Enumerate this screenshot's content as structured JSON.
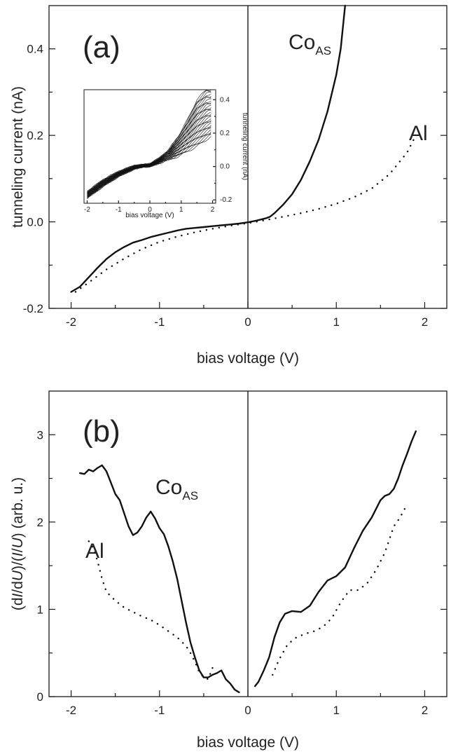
{
  "chart_data": [
    {
      "type": "line",
      "panel_label": "(a)",
      "xlabel": "bias voltage (V)",
      "ylabel": "tunneling current (nA)",
      "xlim": [
        -2.25,
        2.25
      ],
      "ylim": [
        -0.2,
        0.5
      ],
      "xticks": [
        -2,
        -1,
        0,
        1,
        2
      ],
      "yticks": [
        -0.2,
        0.0,
        0.2,
        0.4
      ],
      "ytick_labels": [
        "-0.2",
        "0.0",
        "0.2",
        "0.4"
      ],
      "series": [
        {
          "name": "CoAS",
          "label_main": "Co",
          "label_sub": "AS",
          "style": "solid",
          "x": [
            -2.0,
            -1.9,
            -1.8,
            -1.7,
            -1.6,
            -1.5,
            -1.4,
            -1.3,
            -1.2,
            -1.1,
            -1.0,
            -0.9,
            -0.8,
            -0.7,
            -0.6,
            -0.5,
            -0.4,
            -0.3,
            -0.2,
            -0.1,
            0.0,
            0.1,
            0.2,
            0.25,
            0.3,
            0.4,
            0.5,
            0.6,
            0.7,
            0.8,
            0.9,
            1.0,
            1.05,
            1.1
          ],
          "y": [
            -0.162,
            -0.15,
            -0.128,
            -0.106,
            -0.086,
            -0.07,
            -0.058,
            -0.048,
            -0.042,
            -0.035,
            -0.03,
            -0.025,
            -0.02,
            -0.016,
            -0.014,
            -0.012,
            -0.01,
            -0.008,
            -0.006,
            -0.004,
            -0.001,
            0.003,
            0.008,
            0.012,
            0.02,
            0.04,
            0.064,
            0.097,
            0.14,
            0.19,
            0.255,
            0.34,
            0.4,
            0.5
          ]
        },
        {
          "name": "Al",
          "label_main": "Al",
          "style": "dotted",
          "x": [
            -1.95,
            -1.8,
            -1.6,
            -1.4,
            -1.2,
            -1.0,
            -0.8,
            -0.6,
            -0.4,
            -0.2,
            0.0,
            0.2,
            0.4,
            0.6,
            0.8,
            1.0,
            1.2,
            1.4,
            1.6,
            1.8,
            1.9
          ],
          "y": [
            -0.162,
            -0.14,
            -0.11,
            -0.085,
            -0.063,
            -0.046,
            -0.034,
            -0.024,
            -0.016,
            -0.009,
            -0.003,
            0.004,
            0.012,
            0.02,
            0.03,
            0.042,
            0.057,
            0.077,
            0.11,
            0.16,
            0.2
          ]
        }
      ],
      "inset": {
        "type": "line",
        "xlabel": "bias voltage (V)",
        "ylabel": "tunneling current (nA)",
        "xlim": [
          -2.1,
          2.1
        ],
        "ylim": [
          -0.22,
          0.46
        ],
        "xticks": [
          -2,
          -1,
          0,
          1,
          2
        ],
        "yticks": [
          -0.2,
          0.0,
          0.2,
          0.4
        ],
        "ytick_labels": [
          "-0.2",
          "0.0",
          "0.2",
          "0.4"
        ],
        "x": [
          -2.0,
          -1.5,
          -1.0,
          -0.5,
          -0.2,
          0.0,
          0.3,
          0.6,
          0.9,
          1.2,
          1.5,
          1.8,
          1.95
        ],
        "low_envelope": [
          -0.19,
          -0.12,
          -0.06,
          -0.015,
          0.0,
          0.0,
          0.02,
          0.04,
          0.06,
          0.09,
          0.12,
          0.16,
          0.18
        ],
        "high_envelope": [
          -0.15,
          -0.08,
          -0.03,
          0.005,
          0.01,
          0.015,
          0.05,
          0.1,
          0.18,
          0.28,
          0.4,
          0.46,
          0.46
        ],
        "trace_count": 30
      }
    },
    {
      "type": "line",
      "panel_label": "(b)",
      "xlabel": "bias voltage (V)",
      "ylabel": "(dI/dU)/(I/U) (arb. u.)",
      "ylabel_parts": [
        "(d",
        "I",
        "/d",
        "U",
        ")/(",
        "I",
        "/",
        "U",
        ") (arb. u.)"
      ],
      "xlim": [
        -2.25,
        2.25
      ],
      "ylim": [
        0,
        3.5
      ],
      "xticks": [
        -2,
        -1,
        0,
        1,
        2
      ],
      "yticks": [
        0,
        1,
        2,
        3
      ],
      "ytick_labels": [
        "0",
        "1",
        "2",
        "3"
      ],
      "series": [
        {
          "name": "CoAS",
          "label_main": "Co",
          "label_sub": "AS",
          "style": "solid",
          "segments": [
            {
              "x": [
                -1.9,
                -1.85,
                -1.8,
                -1.75,
                -1.7,
                -1.65,
                -1.6,
                -1.55,
                -1.5,
                -1.45,
                -1.4,
                -1.35,
                -1.3,
                -1.25,
                -1.2,
                -1.15,
                -1.1,
                -1.05,
                -1.0,
                -0.95,
                -0.9,
                -0.85,
                -0.8,
                -0.75,
                -0.7,
                -0.65,
                -0.6,
                -0.55,
                -0.5,
                -0.45,
                -0.4,
                -0.35,
                -0.3,
                -0.25,
                -0.2,
                -0.15,
                -0.1
              ],
              "y": [
                2.56,
                2.55,
                2.6,
                2.58,
                2.62,
                2.65,
                2.58,
                2.45,
                2.32,
                2.25,
                2.1,
                1.95,
                1.85,
                1.88,
                1.95,
                2.05,
                2.12,
                2.04,
                1.93,
                1.86,
                1.72,
                1.55,
                1.35,
                1.1,
                0.85,
                0.62,
                0.45,
                0.3,
                0.22,
                0.22,
                0.25,
                0.27,
                0.3,
                0.2,
                0.15,
                0.08,
                0.05
              ]
            },
            {
              "x": [
                0.08,
                0.12,
                0.18,
                0.24,
                0.3,
                0.36,
                0.42,
                0.5,
                0.6,
                0.7,
                0.8,
                0.9,
                1.0,
                1.1,
                1.2,
                1.3,
                1.4,
                1.5,
                1.55,
                1.6,
                1.65,
                1.7,
                1.75,
                1.8,
                1.85,
                1.9
              ],
              "y": [
                0.12,
                0.17,
                0.3,
                0.45,
                0.68,
                0.85,
                0.95,
                0.98,
                0.97,
                1.04,
                1.2,
                1.33,
                1.38,
                1.48,
                1.7,
                1.9,
                2.05,
                2.25,
                2.3,
                2.32,
                2.38,
                2.5,
                2.65,
                2.78,
                2.92,
                3.04
              ]
            }
          ]
        },
        {
          "name": "Al",
          "label_main": "Al",
          "style": "dotted",
          "segments": [
            {
              "x": [
                -1.8,
                -1.75,
                -1.7,
                -1.65,
                -1.6,
                -1.5,
                -1.4,
                -1.3,
                -1.2,
                -1.1,
                -1.0,
                -0.9,
                -0.8,
                -0.7,
                -0.65,
                -0.6,
                -0.55,
                -0.5,
                -0.45,
                -0.4
              ],
              "y": [
                1.78,
                1.7,
                1.55,
                1.35,
                1.2,
                1.1,
                1.02,
                0.97,
                0.92,
                0.88,
                0.82,
                0.75,
                0.68,
                0.58,
                0.5,
                0.4,
                0.28,
                0.22,
                0.2,
                0.33
              ]
            },
            {
              "x": [
                0.28,
                0.35,
                0.45,
                0.55,
                0.65,
                0.75,
                0.85,
                0.95,
                1.05,
                1.15,
                1.25,
                1.35,
                1.45,
                1.55,
                1.65,
                1.72,
                1.8
              ],
              "y": [
                0.25,
                0.42,
                0.6,
                0.68,
                0.72,
                0.75,
                0.8,
                0.9,
                1.08,
                1.22,
                1.22,
                1.3,
                1.45,
                1.65,
                1.95,
                2.05,
                2.2
              ]
            }
          ]
        }
      ]
    }
  ]
}
